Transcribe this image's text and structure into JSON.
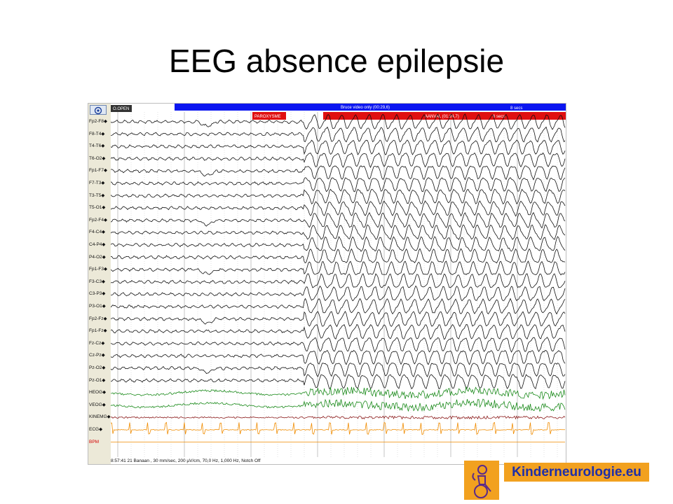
{
  "title": "EEG absence epilepsie",
  "eeg": {
    "target_button_icon": "target-icon",
    "event_tag": "O.OPEN",
    "video_bar_text": "Bruce video only (00:29,6)",
    "video_bar_right_text": "8 secs",
    "paroxysm_tag": "PAROXYSME",
    "seizure_text": "AANVAL (01:24,7)",
    "seizure_extra_text": "6 secs",
    "channels": [
      "Fp2-F8",
      "F8-T4",
      "T4-T6",
      "T6-O2",
      "Fp1-F7",
      "F7-T3",
      "T3-T5",
      "T5-O1",
      "Fp2-F4",
      "F4-C4",
      "C4-P4",
      "P4-O2",
      "Fp1-F3",
      "F3-C3",
      "C3-P3",
      "P3-O1",
      "Fp2-Fz",
      "Fp1-Fz",
      "Fz-Cz",
      "Cz-Pz",
      "Pz-O2",
      "Pz-O1",
      "HEOG",
      "VEOG",
      "KINEMG",
      "ECG",
      "BPM"
    ],
    "status_line": "8:57:41 21 Banaan , 30 mm/sec, 200 µV/cm, 70,0 Hz, 1,000 Hz, Notch Off",
    "colors": {
      "eeg_trace": "#111111",
      "eog_trace": "#1a8a1a",
      "emg_trace": "#8b1a1a",
      "ecg_trace": "#f08c00",
      "video_bar": "#0b16f0",
      "seizure_bar": "#e01010",
      "grid": "#b8b8b8"
    }
  },
  "logo": {
    "text": "Kinderneurologie.eu",
    "icon": "child-wheelchair-logo-icon"
  }
}
